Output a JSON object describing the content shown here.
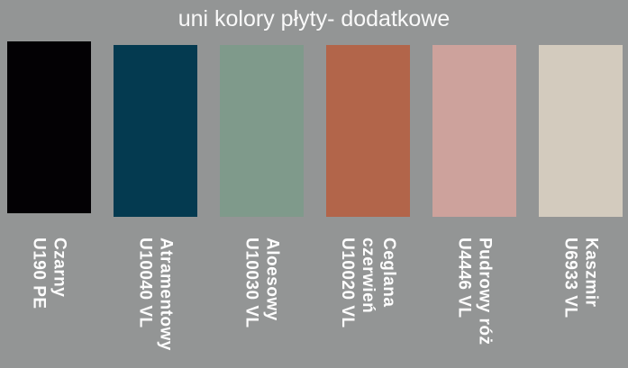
{
  "title": "uni kolory płyty- dodatkowe",
  "colors": {
    "background": "#939595",
    "title_text": "#f9f9f9",
    "label_text": "#fdfdfd"
  },
  "swatches": [
    {
      "name": "Czarny",
      "code": "U190 PE",
      "label": "Czarny\nU190 PE",
      "color": "#030104"
    },
    {
      "name": "Atramentowy",
      "code": "U10040 VL",
      "label": "Atramentowy\nU10040 VL",
      "color": "#043A50"
    },
    {
      "name": "Aloesowy",
      "code": "U10030 VL",
      "label": "Aloesowy\nU10030 VL",
      "color": "#7F9A8B"
    },
    {
      "name": "Ceglana czerwień",
      "code": "U10020 VL",
      "label": "Ceglana\nczerwień\nU10020 VL",
      "color": "#B2654A"
    },
    {
      "name": "Pudrowy róż",
      "code": "U4446 VL",
      "label": "Pudrowy róż\nU4446 VL",
      "color": "#CDA29C"
    },
    {
      "name": "Kaszmir",
      "code": "U6933 VL",
      "label": "Kaszmir\nU6933 VL",
      "color": "#D3CBBE"
    }
  ]
}
